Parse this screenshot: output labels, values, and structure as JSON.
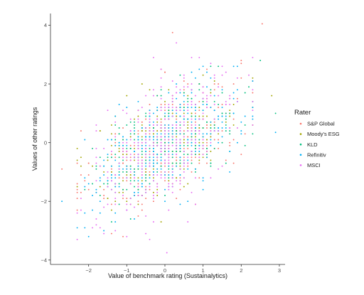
{
  "chart_data": {
    "type": "scatter",
    "title": "",
    "xlabel": "Value of benchmark rating (Sustainalytics)",
    "ylabel": "Values of other ratings",
    "xlim": [
      -3.0,
      3.15
    ],
    "ylim": [
      -4.15,
      4.4
    ],
    "x_ticks": [
      -2,
      -1,
      0,
      1,
      2,
      3
    ],
    "x_tick_labels": [
      "−2",
      "−1",
      "0",
      "1",
      "2",
      "3"
    ],
    "y_ticks": [
      -4,
      -2,
      0,
      2,
      4
    ],
    "y_tick_labels": [
      "−4",
      "−2",
      "0",
      "2",
      "4"
    ],
    "grid": false,
    "legend": {
      "title": "Rater",
      "placement": "right"
    },
    "series": [
      {
        "name": "S&P Global",
        "color": "#F8766D",
        "slope": 0.62,
        "spread": 0.95,
        "n": 320,
        "x_values": "levels",
        "y_values": "levels",
        "points": [
          [
            2.55,
            4.05
          ],
          [
            0.2,
            3.75
          ],
          [
            -2.7,
            -0.9
          ]
        ]
      },
      {
        "name": "Moody's ESG",
        "color": "#A3A500",
        "slope": 0.6,
        "spread": 0.8,
        "n": 280,
        "x_values": "levels",
        "y_values": "levels",
        "points": [
          [
            2.8,
            1.6
          ],
          [
            -2.2,
            -0.5
          ],
          [
            1.0,
            2.3
          ]
        ]
      },
      {
        "name": "KLD",
        "color": "#00BF7D",
        "slope": 0.55,
        "spread": 0.75,
        "n": 280,
        "x_values": "levels",
        "y_values": "levels",
        "points": [
          [
            2.9,
            1.0
          ],
          [
            1.2,
            2.6
          ],
          [
            2.5,
            2.8
          ]
        ]
      },
      {
        "name": "Refinitiv",
        "color": "#00B0F6",
        "slope": 0.6,
        "spread": 0.85,
        "n": 320,
        "x_values": "levels",
        "y_values": "levels",
        "points": [
          [
            -2.7,
            -2.0
          ],
          [
            -2.1,
            -2.9
          ],
          [
            -1.6,
            -3.0
          ],
          [
            2.9,
            0.35
          ]
        ]
      },
      {
        "name": "MSCI",
        "color": "#E76BF3",
        "slope": 0.65,
        "spread": 1.0,
        "n": 340,
        "x_values": "levels",
        "y_values": "levels",
        "points": [
          [
            0.05,
            -3.75
          ],
          [
            0.3,
            3.4
          ],
          [
            -0.5,
            -3.1
          ],
          [
            -2.2,
            -1.9
          ]
        ]
      }
    ]
  }
}
